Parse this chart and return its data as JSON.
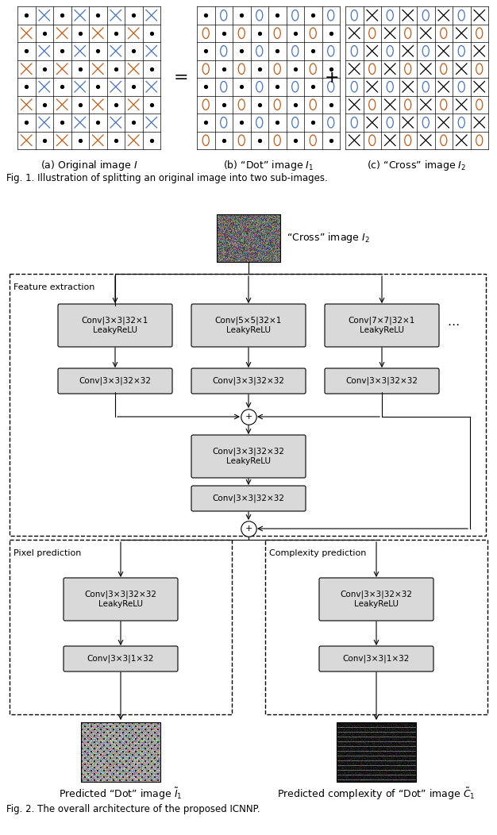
{
  "fig_width": 6.26,
  "fig_height": 10.52,
  "bg_color": "#ffffff",
  "dot_color": "#000000",
  "cross_blue": "#4472c4",
  "cross_orange": "#c55a11",
  "box_fill": "#d9d9d9",
  "box_edge": "#000000",
  "title1": "(a) Original image $I$",
  "title2": "(b) “Dot” image $I_1$",
  "title3": "(c) “Cross” image $I_2$",
  "fig1_caption": "Fig. 1. Illustration of splitting an original image into two sub-images.",
  "fig2_caption": "Fig. 2. The overall architecture of the proposed ICNNP.",
  "cross_img_label": "“Cross” image $I_2$",
  "feat_label": "Feature extraction",
  "pixel_label": "Pixel prediction",
  "complexity_label": "Complexity prediction",
  "pred_dot_label": "Predicted “Dot” image $\\tilde{I}_1$",
  "pred_complex_label": "Predicted complexity of “Dot” image $\\tilde{C}_1$",
  "box_conv1L": "Conv|3×3|32×1\nLeakyReLU",
  "box_conv1M": "Conv|5×5|32×1\nLeakyReLU",
  "box_conv1R": "Conv|7×7|32×1\nLeakyReLU",
  "box_conv2": "Conv|3×3|32×32",
  "box_conv3": "Conv|3×3|32×32\nLeakyReLU",
  "box_conv4": "Conv|3×3|32×32",
  "box_convP1": "Conv|3×3|32×32\nLeakyReLU",
  "box_convP2": "Conv|3×3|1×32",
  "box_convC1": "Conv|3×3|32×32\nLeakyReLU",
  "box_convC2": "Conv|3×3|1×32"
}
